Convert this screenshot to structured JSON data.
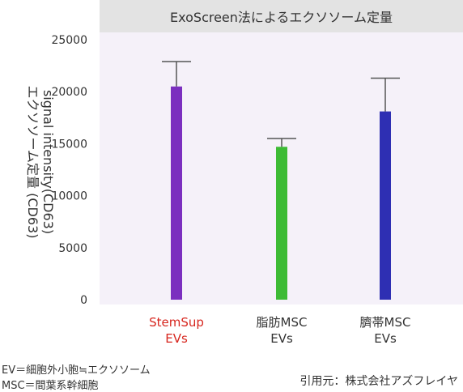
{
  "chart_data": {
    "type": "bar",
    "title": "ExoScreen法によるエクソソーム定量",
    "ylabel_line1": "signal intensity(CD63)",
    "ylabel_line2": "エクソソーム定量 (CD63)",
    "ylim": [
      0,
      25000
    ],
    "yticks": [
      0,
      5000,
      10000,
      15000,
      20000,
      25000
    ],
    "grid": false,
    "categories": [
      {
        "line1": "StemSup",
        "line2": "EVs",
        "label_color": "#d7261e",
        "bar_color": "#7b2fbf"
      },
      {
        "line1": "脂肪MSC",
        "line2": "EVs",
        "label_color": "#333333",
        "bar_color": "#3dbb35"
      },
      {
        "line1": "臍帯MSC",
        "line2": "EVs",
        "label_color": "#333333",
        "bar_color": "#2e2fb3"
      }
    ],
    "values": [
      20500,
      14700,
      18100
    ],
    "error_upper": [
      22900,
      15500,
      21300
    ],
    "error_color": "#555555"
  },
  "footnotes": {
    "line1": "EV＝細胞外小胞≒エクソソーム",
    "line2": "MSC＝間葉系幹細胞"
  },
  "source": "引用元：株式会社アズフレイヤ"
}
